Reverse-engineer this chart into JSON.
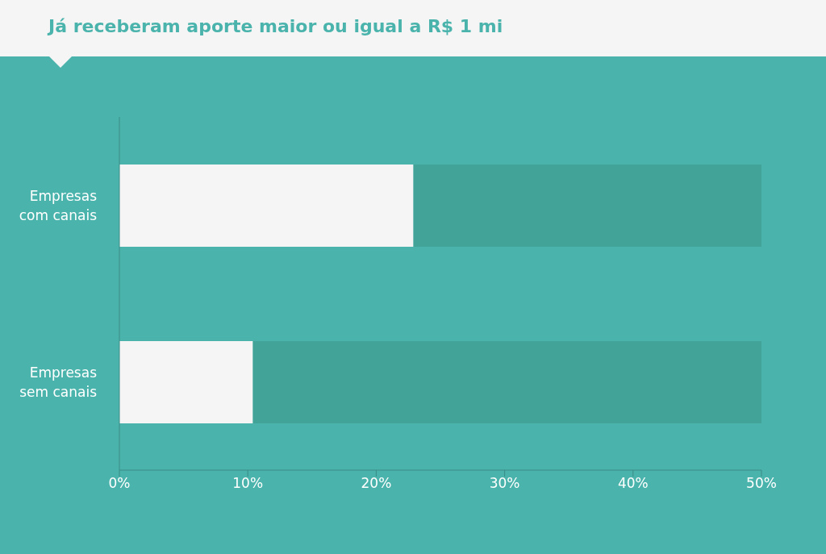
{
  "chart_data": {
    "type": "bar",
    "orientation": "horizontal",
    "stacked": true,
    "title": "Já receberam aporte maior ou igual a R$ 1 mi",
    "categories": [
      "Empresas com canais",
      "Empresas sem canais"
    ],
    "series": [
      {
        "color": "#f5f5f5",
        "values": [
          22.9,
          10.4
        ]
      },
      {
        "color": "#42a398",
        "values": [
          27.1,
          39.6
        ]
      }
    ],
    "xlim": [
      0,
      50
    ],
    "xticks": [
      {
        "value": 0,
        "label": "0%"
      },
      {
        "value": 10,
        "label": "10%"
      },
      {
        "value": 20,
        "label": "20%"
      },
      {
        "value": 30,
        "label": "30%"
      },
      {
        "value": 40,
        "label": "40%"
      },
      {
        "value": 50,
        "label": "50%"
      }
    ],
    "grid": false,
    "legend": false
  }
}
